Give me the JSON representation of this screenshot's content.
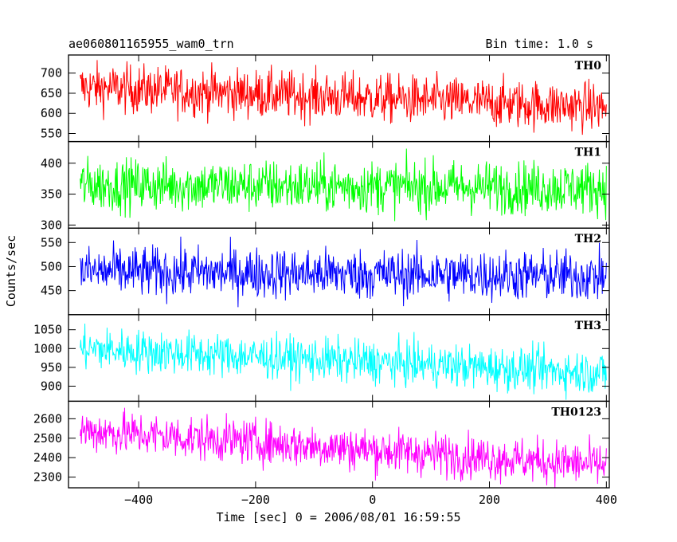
{
  "header": {
    "title": "ae060801165955_wam0_trn",
    "bin_time": "Bin time: 1.0 s"
  },
  "chart_data": {
    "type": "line",
    "xlabel": "Time [sec] 0 = 2006/08/01 16:59:55",
    "ylabel": "Counts/sec",
    "xlim": [
      -520,
      405
    ],
    "x_ticks": [
      -400,
      -200,
      0,
      200,
      400
    ],
    "x_tick_labels": [
      "−400",
      "−200",
      "0",
      "200",
      "400"
    ],
    "x_range": [
      -500,
      400
    ],
    "bin_time_s": 1.0,
    "panels": [
      {
        "name": "TH0",
        "color": "#ff0000",
        "ylim": [
          530,
          745
        ],
        "y_ticks": [
          550,
          600,
          650,
          700
        ],
        "mean_start": 665,
        "mean_end": 615,
        "spread": 40
      },
      {
        "name": "TH1",
        "color": "#00ff00",
        "ylim": [
          295,
          435
        ],
        "y_ticks": [
          300,
          350,
          400
        ],
        "mean_start": 365,
        "mean_end": 360,
        "spread": 28
      },
      {
        "name": "TH2",
        "color": "#0000ff",
        "ylim": [
          400,
          580
        ],
        "y_ticks": [
          450,
          500,
          550
        ],
        "mean_start": 490,
        "mean_end": 480,
        "spread": 35
      },
      {
        "name": "TH3",
        "color": "#00ffff",
        "ylim": [
          860,
          1090
        ],
        "y_ticks": [
          900,
          950,
          1000,
          1050
        ],
        "mean_start": 1000,
        "mean_end": 935,
        "spread": 38
      },
      {
        "name": "TH0123",
        "color": "#ff00ff",
        "ylim": [
          2245,
          2690
        ],
        "y_ticks": [
          2300,
          2400,
          2500,
          2600
        ],
        "mean_start": 2540,
        "mean_end": 2360,
        "spread": 75
      }
    ]
  }
}
